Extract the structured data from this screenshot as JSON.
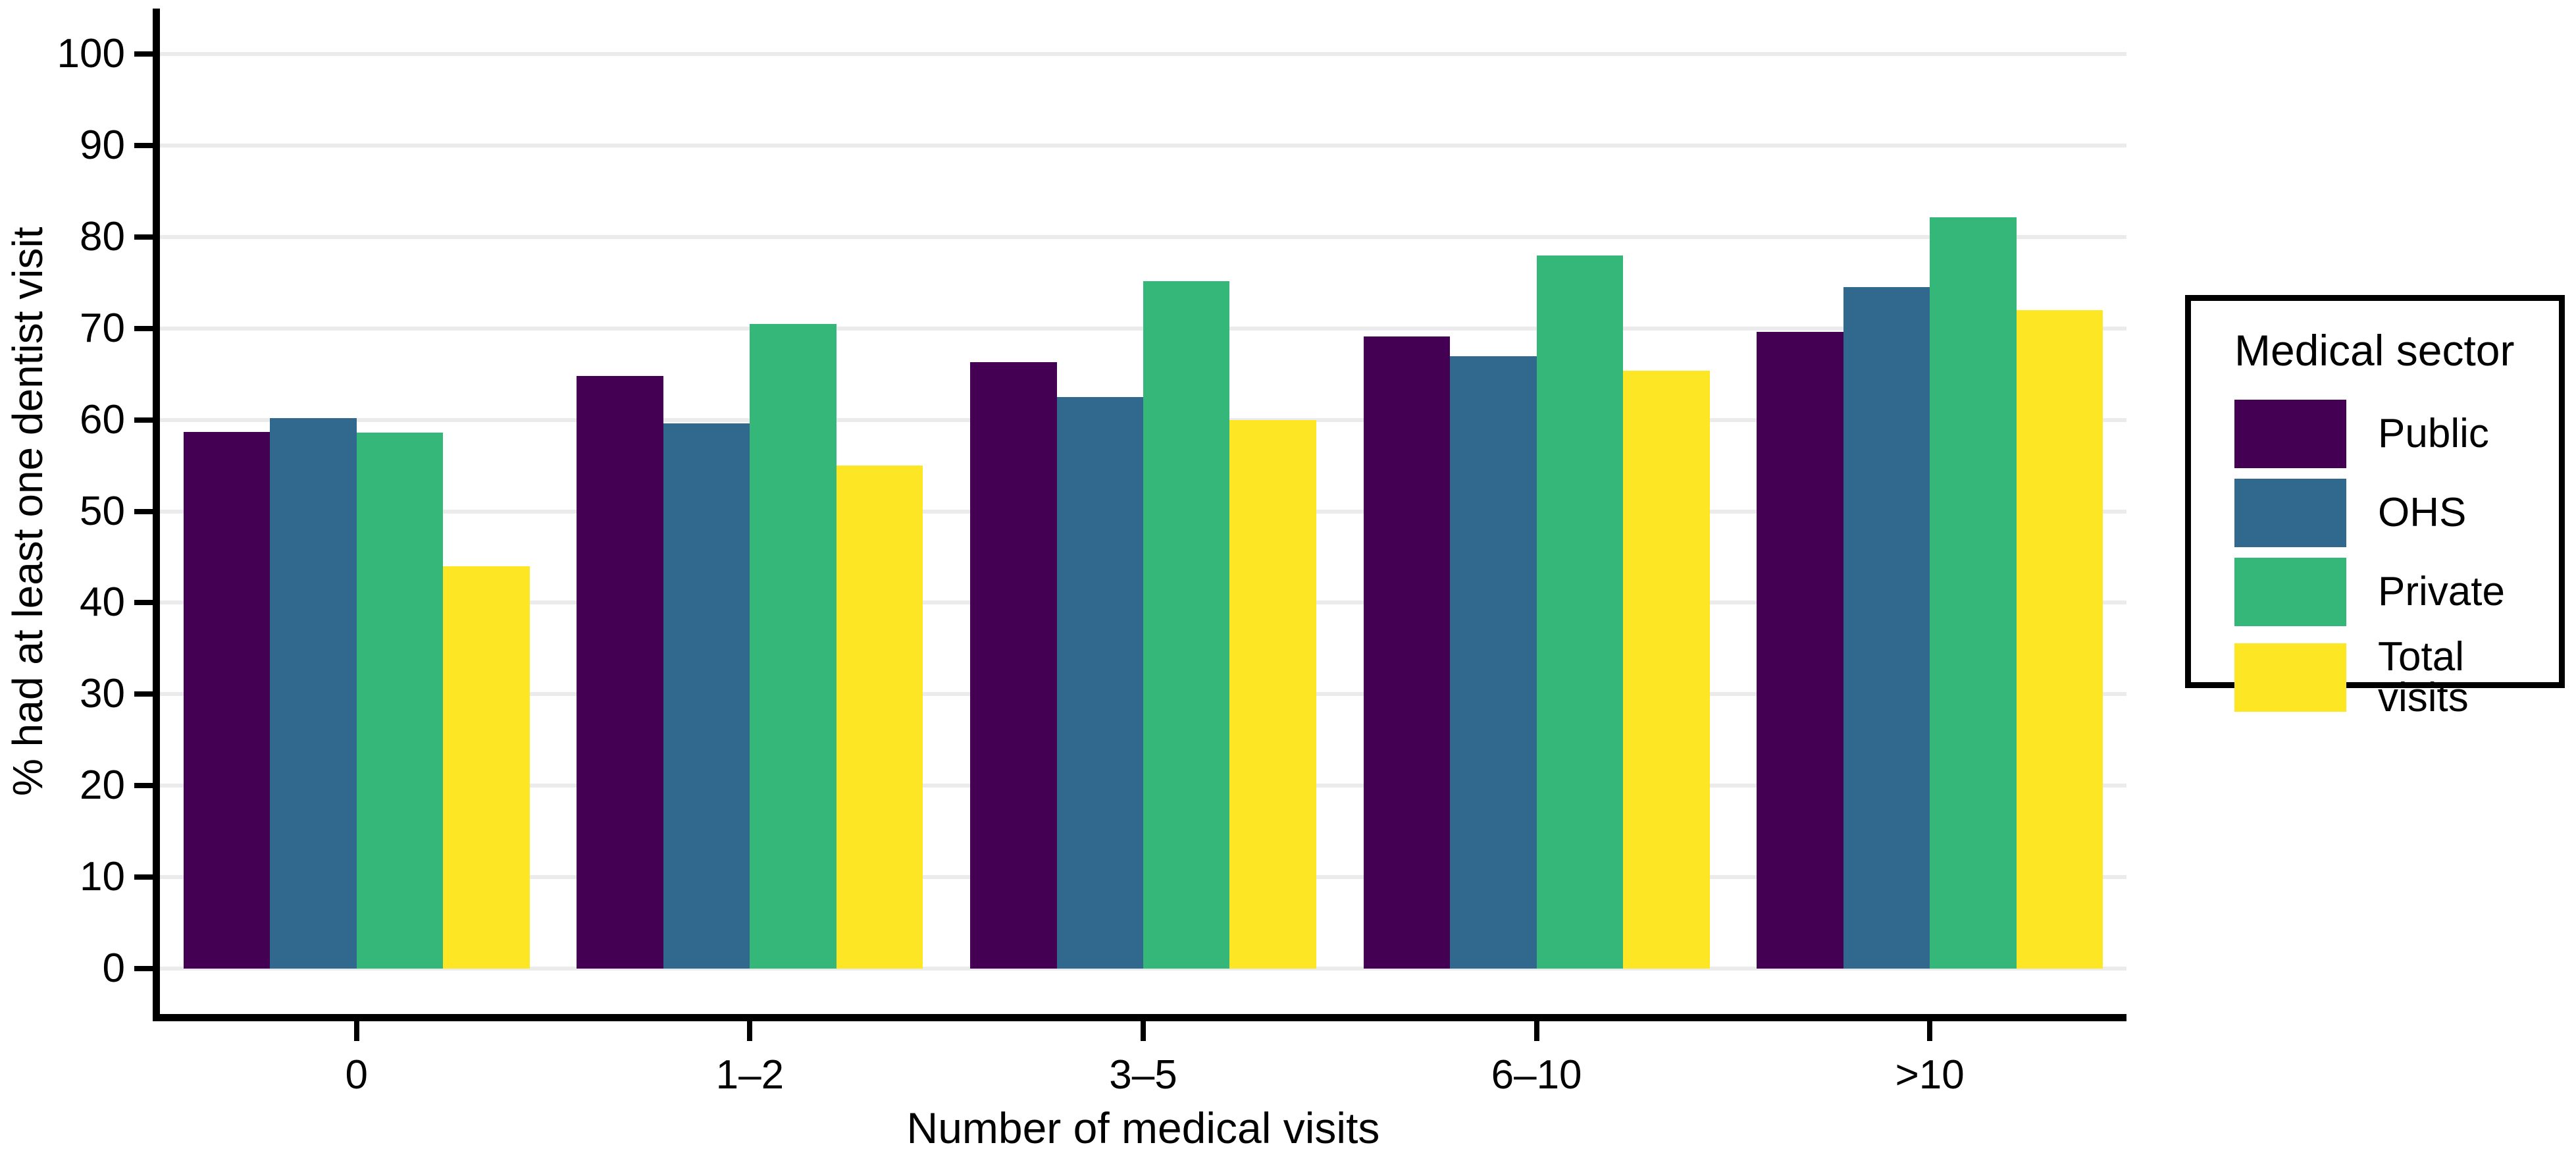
{
  "chart_data": {
    "type": "bar",
    "title": "",
    "xlabel": "Number of medical visits",
    "ylabel": "% had at least one dentist visit",
    "categories": [
      "0",
      "1–2",
      "3–5",
      "6–10",
      ">10"
    ],
    "series": [
      {
        "name": "Public",
        "color": "#440154",
        "values": [
          58.7,
          64.8,
          66.3,
          69.1,
          69.6
        ]
      },
      {
        "name": "OHS",
        "color": "#31688E",
        "values": [
          60.2,
          59.6,
          62.5,
          67.0,
          74.5
        ]
      },
      {
        "name": "Private",
        "color": "#35B779",
        "values": [
          58.6,
          70.5,
          75.2,
          78.0,
          82.2
        ]
      },
      {
        "name": "Total visits",
        "color": "#FDE725",
        "values": [
          44.0,
          55.0,
          60.0,
          65.4,
          72.0
        ]
      }
    ],
    "legend_title": "Medical sector",
    "legend_position": "right",
    "y_ticks": [
      0,
      10,
      20,
      30,
      40,
      50,
      60,
      70,
      80,
      90,
      100
    ],
    "ylim": [
      0,
      100
    ],
    "y_domain": [
      -5,
      105
    ],
    "grid": "horizontal",
    "gridline_color": "#EBEBEB",
    "axis_color": "#000000",
    "background_color": "#FFFFFF",
    "bar_group_width_fraction": 0.88
  }
}
